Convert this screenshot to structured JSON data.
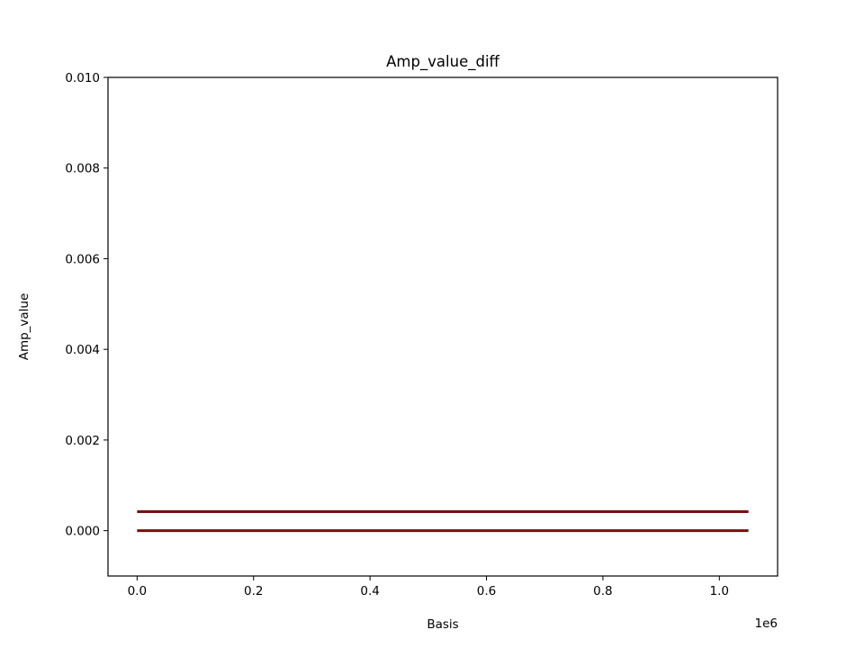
{
  "chart_data": {
    "type": "line",
    "title": "Amp_value_diff",
    "xlabel": "Basis",
    "ylabel": "Amp_value",
    "x_offset_text": "1e6",
    "xlim": [
      -50000,
      1100000
    ],
    "ylim": [
      -0.001,
      0.01
    ],
    "x_ticks": [
      0,
      200000,
      400000,
      600000,
      800000,
      1000000
    ],
    "x_tick_labels": [
      "0.0",
      "0.2",
      "0.4",
      "0.6",
      "0.8",
      "1.0"
    ],
    "y_ticks": [
      0,
      0.002,
      0.004,
      0.006,
      0.008,
      0.01
    ],
    "y_tick_labels": [
      "0.000",
      "0.002",
      "0.004",
      "0.006",
      "0.008",
      "0.010"
    ],
    "grid": false,
    "series": [
      {
        "x": [
          0,
          1050000
        ],
        "y": [
          0.00042,
          0.00042
        ],
        "color": "#7a0f0f"
      },
      {
        "x": [
          0,
          1050000
        ],
        "y": [
          0.0,
          0.0
        ],
        "color": "#7a0f0f"
      }
    ]
  }
}
